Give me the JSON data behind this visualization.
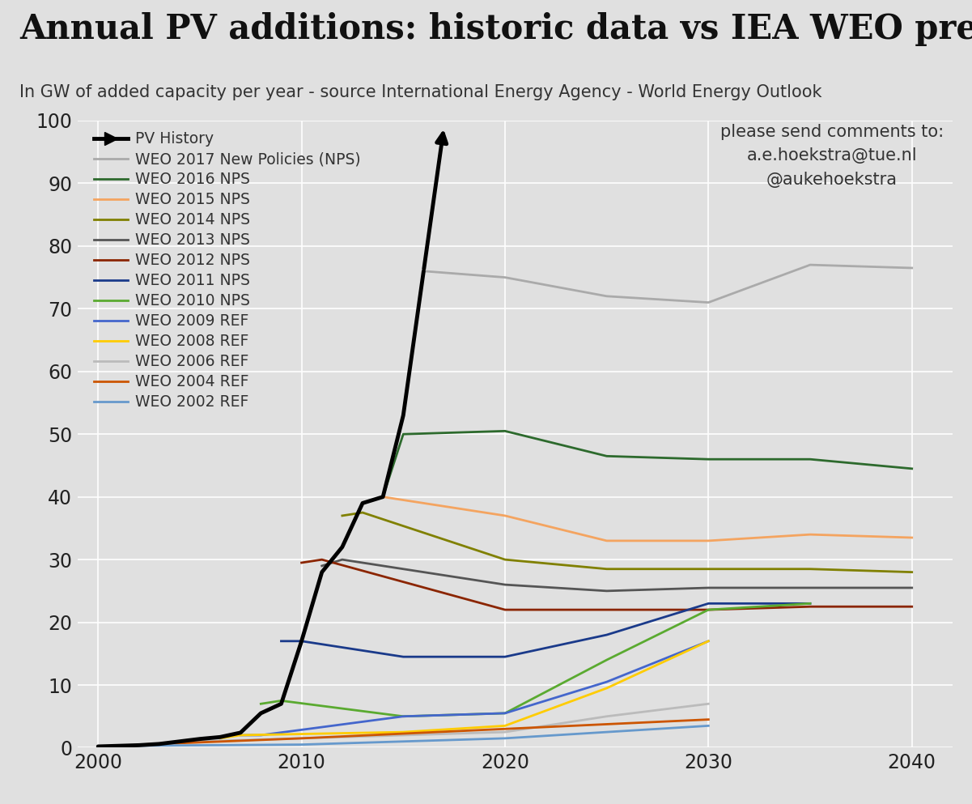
{
  "title": "Annual PV additions: historic data vs IEA WEO predictions",
  "subtitle": "In GW of added capacity per year - source International Energy Agency - World Energy Outlook",
  "annotation": "please send comments to:\na.e.hoekstra@tue.nl\n@aukehoekstra",
  "xlim": [
    1999,
    2042
  ],
  "ylim": [
    0,
    100
  ],
  "xticks": [
    2000,
    2010,
    2020,
    2030,
    2040
  ],
  "yticks": [
    0,
    10,
    20,
    30,
    40,
    50,
    60,
    70,
    80,
    90,
    100
  ],
  "bg_color": "#e0e0e0",
  "series": [
    {
      "label": "PV History",
      "color": "#000000",
      "lw": 3.5,
      "arrow": true,
      "x": [
        2000,
        2001,
        2002,
        2003,
        2004,
        2005,
        2006,
        2007,
        2008,
        2009,
        2010,
        2011,
        2012,
        2013,
        2014,
        2015,
        2016,
        2017
      ],
      "y": [
        0.2,
        0.3,
        0.4,
        0.6,
        1.0,
        1.4,
        1.7,
        2.4,
        5.5,
        7.0,
        17.0,
        28.0,
        32.0,
        39.0,
        40.0,
        53.0,
        76.0,
        99.0
      ]
    },
    {
      "label": "WEO 2017 New Policies (NPS)",
      "color": "#aaaaaa",
      "lw": 2,
      "arrow": false,
      "x": [
        2016,
        2020,
        2025,
        2030,
        2035,
        2040
      ],
      "y": [
        76.0,
        75.0,
        72.0,
        71.0,
        77.0,
        76.5
      ]
    },
    {
      "label": "WEO 2016 NPS",
      "color": "#2d6a2d",
      "lw": 2,
      "arrow": false,
      "x": [
        2014,
        2015,
        2020,
        2025,
        2030,
        2035,
        2040
      ],
      "y": [
        40.0,
        50.0,
        50.5,
        46.5,
        46.0,
        46.0,
        44.5
      ]
    },
    {
      "label": "WEO 2015 NPS",
      "color": "#f4a460",
      "lw": 2,
      "arrow": false,
      "x": [
        2013,
        2014,
        2020,
        2025,
        2030,
        2035,
        2040
      ],
      "y": [
        39.0,
        40.0,
        37.0,
        33.0,
        33.0,
        34.0,
        33.5
      ]
    },
    {
      "label": "WEO 2014 NPS",
      "color": "#808000",
      "lw": 2,
      "arrow": false,
      "x": [
        2012,
        2013,
        2020,
        2025,
        2030,
        2035,
        2040
      ],
      "y": [
        37.0,
        37.5,
        30.0,
        28.5,
        28.5,
        28.5,
        28.0
      ]
    },
    {
      "label": "WEO 2013 NPS",
      "color": "#555555",
      "lw": 2,
      "arrow": false,
      "x": [
        2011,
        2012,
        2020,
        2025,
        2030,
        2035,
        2040
      ],
      "y": [
        29.0,
        30.0,
        26.0,
        25.0,
        25.5,
        25.5,
        25.5
      ]
    },
    {
      "label": "WEO 2012 NPS",
      "color": "#8B2500",
      "lw": 2,
      "arrow": false,
      "x": [
        2010,
        2011,
        2020,
        2025,
        2030,
        2035,
        2040
      ],
      "y": [
        29.5,
        30.0,
        22.0,
        22.0,
        22.0,
        22.5,
        22.5
      ]
    },
    {
      "label": "WEO 2011 NPS",
      "color": "#1a3a8a",
      "lw": 2,
      "arrow": false,
      "x": [
        2009,
        2010,
        2015,
        2020,
        2025,
        2030,
        2035
      ],
      "y": [
        17.0,
        17.0,
        14.5,
        14.5,
        18.0,
        23.0,
        23.0
      ]
    },
    {
      "label": "WEO 2010 NPS",
      "color": "#5aaa30",
      "lw": 2,
      "arrow": false,
      "x": [
        2008,
        2009,
        2015,
        2020,
        2025,
        2030,
        2035
      ],
      "y": [
        7.0,
        7.5,
        5.0,
        5.5,
        14.0,
        22.0,
        23.0
      ]
    },
    {
      "label": "WEO 2009 REF",
      "color": "#4466cc",
      "lw": 2,
      "arrow": false,
      "x": [
        2007,
        2008,
        2015,
        2020,
        2025,
        2030
      ],
      "y": [
        2.0,
        2.0,
        5.0,
        5.5,
        10.5,
        17.0
      ]
    },
    {
      "label": "WEO 2008 REF",
      "color": "#ffcc00",
      "lw": 2,
      "arrow": false,
      "x": [
        2006,
        2007,
        2015,
        2020,
        2025,
        2030
      ],
      "y": [
        1.5,
        2.0,
        2.5,
        3.5,
        9.5,
        17.0
      ]
    },
    {
      "label": "WEO 2006 REF",
      "color": "#bbbbbb",
      "lw": 2,
      "arrow": false,
      "x": [
        2004,
        2005,
        2015,
        2020,
        2025,
        2030
      ],
      "y": [
        0.8,
        1.0,
        2.0,
        2.5,
        5.0,
        7.0
      ]
    },
    {
      "label": "WEO 2004 REF",
      "color": "#cc5500",
      "lw": 2,
      "arrow": false,
      "x": [
        2002,
        2003,
        2010,
        2020,
        2030
      ],
      "y": [
        0.5,
        0.6,
        1.5,
        3.0,
        4.5
      ]
    },
    {
      "label": "WEO 2002 REF",
      "color": "#6699cc",
      "lw": 2,
      "arrow": false,
      "x": [
        2000,
        2001,
        2010,
        2020,
        2030
      ],
      "y": [
        0.2,
        0.3,
        0.5,
        1.5,
        3.5
      ]
    }
  ]
}
